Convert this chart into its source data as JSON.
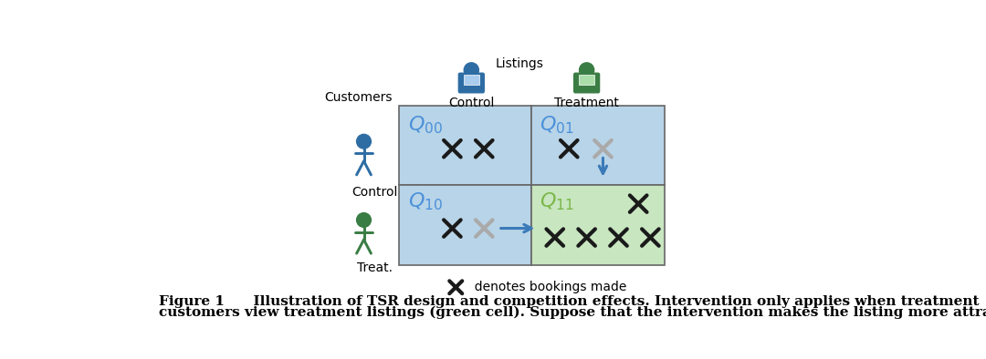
{
  "fig_width": 10.8,
  "fig_height": 3.94,
  "dpi": 100,
  "bg_color": "#ffffff",
  "cell_blue": "#b8d4e8",
  "cell_green": "#c8e6c0",
  "labels": {
    "listings": "Listings",
    "control_listing": "Control",
    "treatment_listing": "Treatment",
    "customers": "Customers",
    "control_customer": "Control",
    "treat_customer": "Treat.",
    "Q00": "$\\mathit{Q}_{00}$",
    "Q01": "$\\mathit{Q}_{01}$",
    "Q10": "$\\mathit{Q}_{10}$",
    "Q11": "$\\mathit{Q}_{11}$",
    "legend": "  denotes bookings made"
  },
  "caption_line1": "Figure 1      Illustration of TSR design and competition effects. Intervention only applies when treatment",
  "caption_line2": "customers view treatment listings (green cell). Suppose that the intervention makes the listing more attractive.",
  "blue_color": "#2e6da4",
  "green_color": "#3a7d44",
  "q_blue": "#4a90d9",
  "q_green": "#7ab648",
  "arrow_blue": "#3a7ab8",
  "x_dark": "#1a1a1a",
  "x_gray": "#aaaaaa",
  "grid_lw": 1.2,
  "grid_edge": "#666666"
}
